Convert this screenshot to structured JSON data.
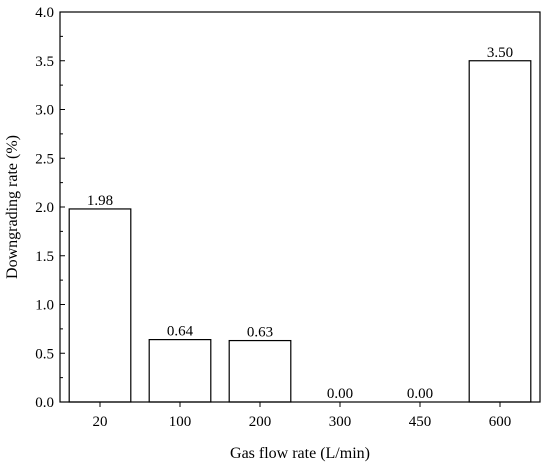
{
  "chart_data": {
    "type": "bar",
    "categories": [
      "20",
      "100",
      "200",
      "300",
      "450",
      "600"
    ],
    "values": [
      1.98,
      0.64,
      0.63,
      0.0,
      0.0,
      3.5
    ],
    "value_labels": [
      "1.98",
      "0.64",
      "0.63",
      "0.00",
      "0.00",
      "3.50"
    ],
    "title": "",
    "xlabel": "Gas flow rate (L/min)",
    "ylabel": "Downgrading rate (%)",
    "ylim": [
      0,
      4.0
    ],
    "yticks": [
      "0.0",
      "0.5",
      "1.0",
      "1.5",
      "2.0",
      "2.5",
      "3.0",
      "3.5",
      "4.0"
    ],
    "grid": false,
    "legend": "none",
    "bar_fill": "#ffffff",
    "bar_stroke": "#000000"
  }
}
